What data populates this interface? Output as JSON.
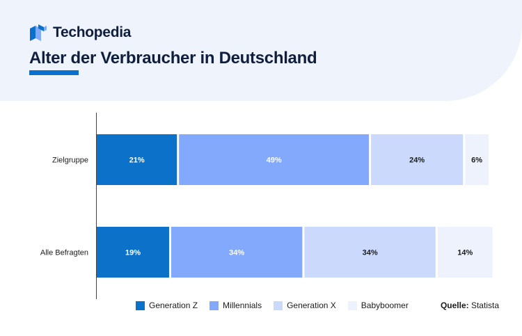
{
  "brand": {
    "name": "Techopedia"
  },
  "title": "Alter der Verbraucher in Deutschland",
  "source": {
    "label": "Quelle:",
    "value": "Statista"
  },
  "colors": {
    "brand_blue": "#0b6fcc",
    "series": [
      "#0b71c9",
      "#82a9fb",
      "#cbdafc",
      "#edf2fd"
    ],
    "label_light": "#ffffff",
    "label_dark": "#1b1b1b"
  },
  "chart_data": {
    "type": "bar",
    "orientation": "horizontal",
    "stacked": true,
    "categories": [
      "Zielgruppe",
      "Alle Befragten"
    ],
    "series": [
      {
        "name": "Generation Z",
        "values": [
          21,
          19
        ],
        "labels": [
          "21%",
          "19%"
        ]
      },
      {
        "name": "Millennials",
        "values": [
          49,
          34
        ],
        "labels": [
          "49%",
          "34%"
        ]
      },
      {
        "name": "Generation X",
        "values": [
          24,
          34
        ],
        "labels": [
          "24%",
          "34%"
        ]
      },
      {
        "name": "Babyboomer",
        "values": [
          6,
          14
        ],
        "labels": [
          "6%",
          "14%"
        ]
      }
    ],
    "xlim": [
      0,
      100
    ],
    "grid": false,
    "legend_position": "bottom"
  }
}
